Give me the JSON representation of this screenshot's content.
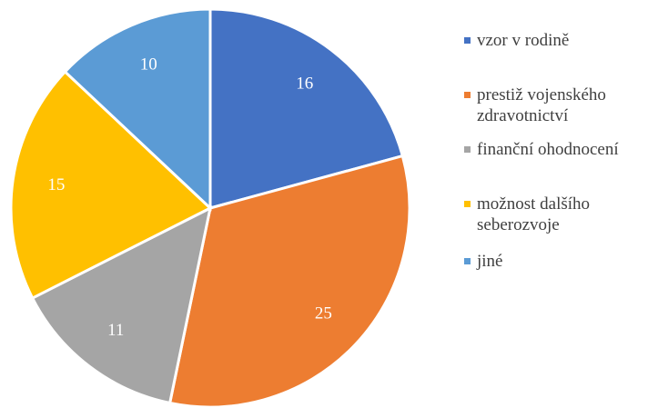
{
  "chart_data": {
    "type": "pie",
    "categories": [
      "vzor v rodině",
      "prestiž vojenského zdravotnictví",
      "finanční ohodnocení",
      "možnost dalšího seberozvoje",
      "jiné"
    ],
    "values": [
      16,
      25,
      11,
      15,
      10
    ],
    "colors": [
      "#4472c4",
      "#ed7d31",
      "#a5a5a5",
      "#ffc000",
      "#5b9bd5"
    ],
    "legend": "right"
  }
}
